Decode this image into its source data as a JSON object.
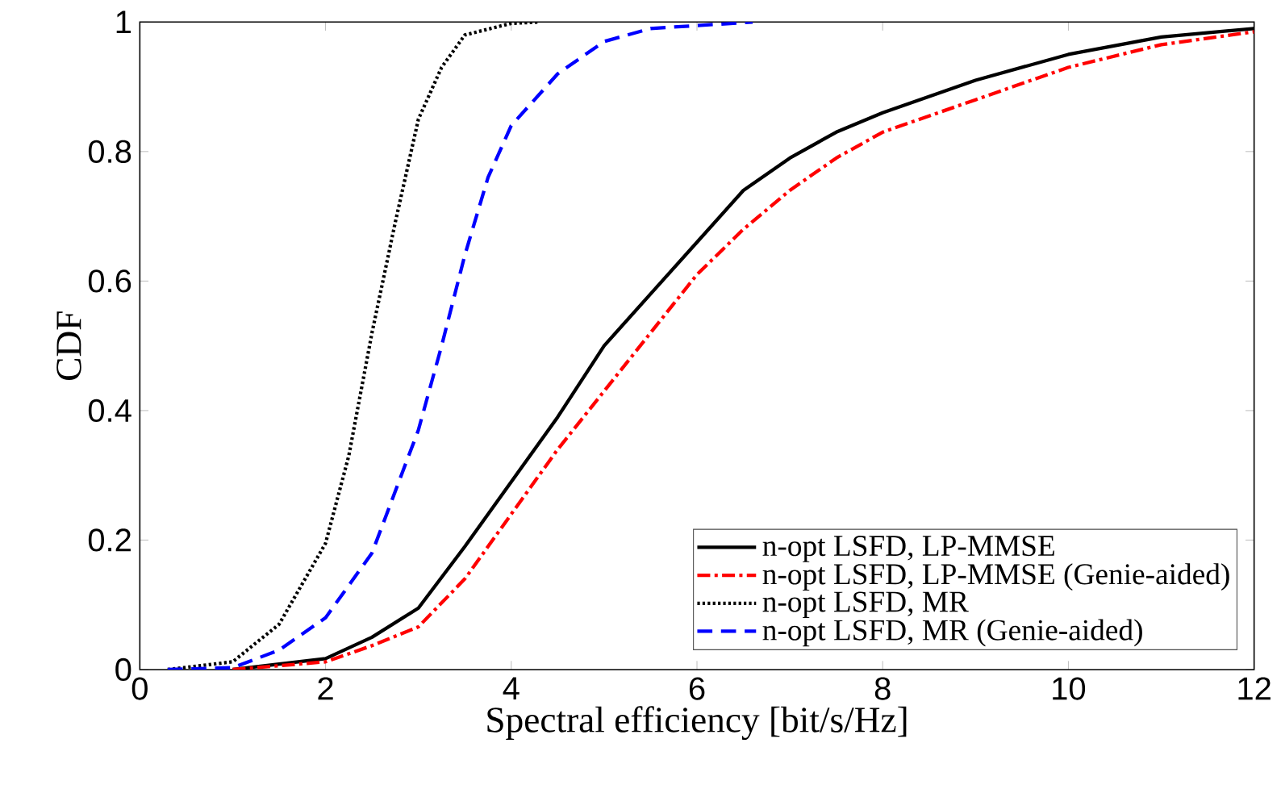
{
  "chart_data": {
    "type": "line",
    "xlabel": "Spectral efficiency [bit/s/Hz]",
    "ylabel": "CDF",
    "xlim": [
      0,
      12
    ],
    "ylim": [
      0,
      1
    ],
    "xticks": [
      0,
      2,
      4,
      6,
      8,
      10,
      12
    ],
    "yticks": [
      0,
      0.2,
      0.4,
      0.6,
      0.8,
      1
    ],
    "grid": false,
    "legend": "bottom right",
    "marker": "none",
    "series": [
      {
        "name": "n-opt LSFD, LP-MMSE",
        "color": "#000000",
        "line_style": "solid",
        "x": [
          1,
          2,
          2.5,
          3,
          3.5,
          4,
          4.5,
          5,
          5.5,
          6,
          6.5,
          7,
          7.5,
          8,
          9,
          10,
          11,
          12
        ],
        "values": [
          0,
          0.017,
          0.05,
          0.095,
          0.19,
          0.29,
          0.39,
          0.5,
          0.58,
          0.66,
          0.74,
          0.79,
          0.83,
          0.86,
          0.91,
          0.95,
          0.977,
          0.99
        ]
      },
      {
        "name": "n-opt LSFD, LP-MMSE (Genie-aided)",
        "color": "#ff0000",
        "line_style": "dashdot",
        "x": [
          1,
          2,
          2.5,
          3,
          3.5,
          4,
          4.5,
          5,
          5.5,
          6,
          6.5,
          7,
          7.5,
          8,
          9,
          10,
          11,
          12
        ],
        "values": [
          0,
          0.012,
          0.037,
          0.066,
          0.14,
          0.24,
          0.34,
          0.43,
          0.52,
          0.61,
          0.68,
          0.74,
          0.79,
          0.83,
          0.88,
          0.93,
          0.965,
          0.985
        ]
      },
      {
        "name": "n-opt LSFD, MR",
        "color": "#000000",
        "line_style": "dotted",
        "x": [
          0.3,
          1,
          1.5,
          2,
          2.25,
          2.5,
          2.75,
          3,
          3.25,
          3.5,
          4,
          4.3
        ],
        "values": [
          0,
          0.012,
          0.07,
          0.195,
          0.33,
          0.52,
          0.69,
          0.85,
          0.93,
          0.98,
          0.998,
          1
        ]
      },
      {
        "name": "n-opt LSFD, MR (Genie-aided)",
        "color": "#0000ff",
        "line_style": "dashed",
        "x": [
          0.3,
          1,
          1.5,
          2,
          2.5,
          3,
          3.25,
          3.5,
          3.75,
          4,
          4.5,
          5,
          5.5,
          6.6
        ],
        "values": [
          0,
          0.003,
          0.03,
          0.08,
          0.18,
          0.37,
          0.5,
          0.64,
          0.76,
          0.84,
          0.92,
          0.97,
          0.99,
          1
        ]
      }
    ]
  }
}
